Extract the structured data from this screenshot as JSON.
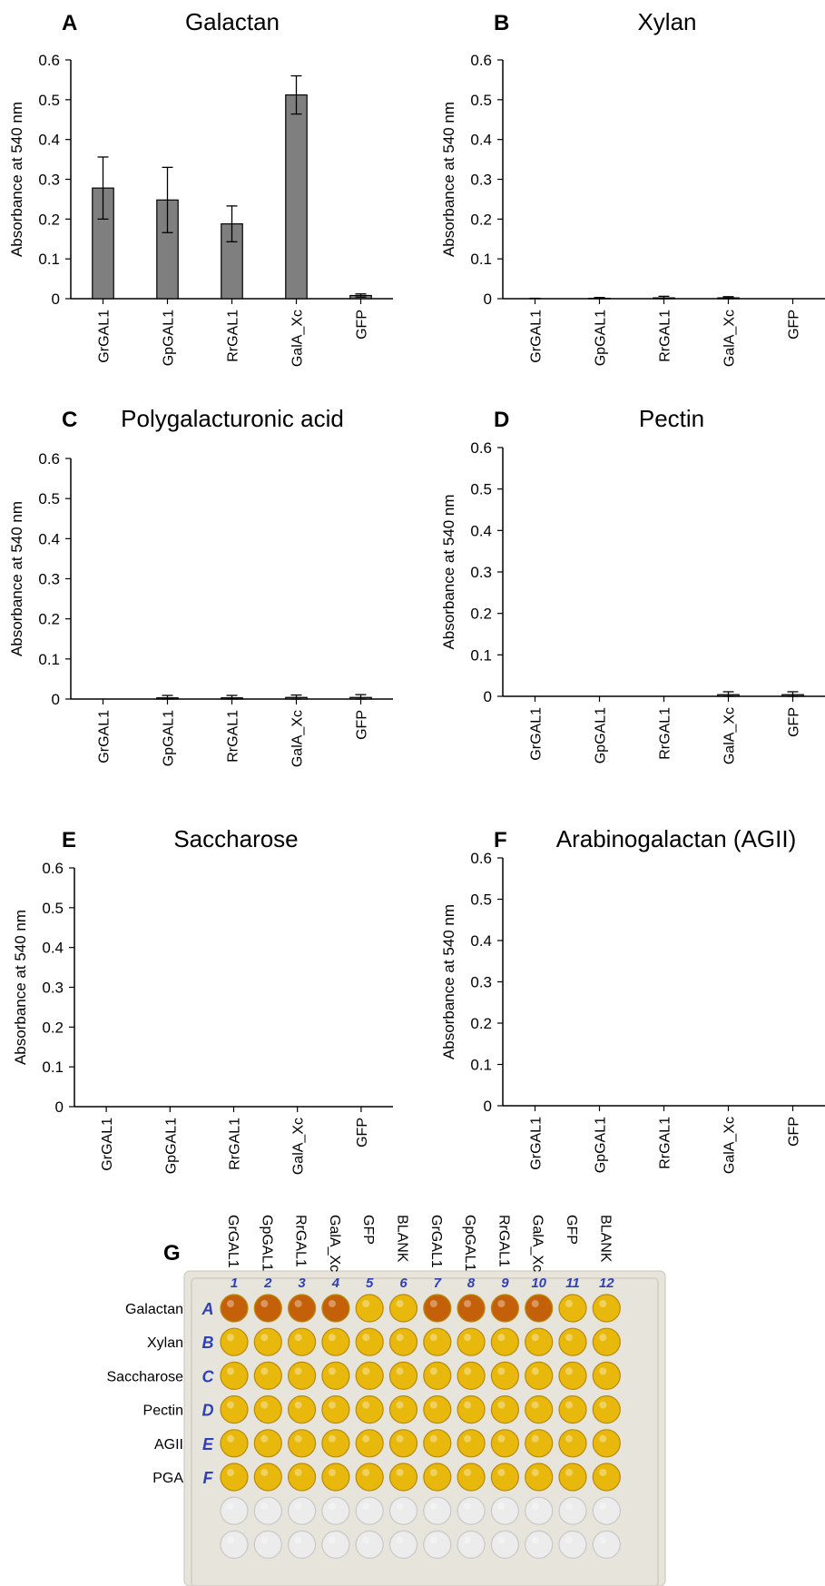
{
  "chart_data": [
    {
      "panel": "A",
      "title": "Galactan",
      "type": "bar",
      "ylabel": "Absorbance at 540 nm",
      "ylim": [
        0,
        0.6
      ],
      "yticks": [
        "0",
        "0.1",
        "0.2",
        "0.3",
        "0.4",
        "0.5",
        "0.6"
      ],
      "categories": [
        "GrGAL1",
        "GpGAL1",
        "RrGAL1",
        "GalA_Xc",
        "GFP"
      ],
      "values": [
        0.278,
        0.248,
        0.188,
        0.512,
        0.008
      ],
      "errors": [
        0.078,
        0.082,
        0.045,
        0.048,
        0.004
      ]
    },
    {
      "panel": "B",
      "title": "Xylan",
      "type": "bar",
      "ylabel": "Absorbance at 540 nm",
      "ylim": [
        0,
        0.6
      ],
      "yticks": [
        "0",
        "0.1",
        "0.2",
        "0.3",
        "0.4",
        "0.5",
        "0.6"
      ],
      "categories": [
        "GrGAL1",
        "GpGAL1",
        "RrGAL1",
        "GalA_Xc",
        "GFP"
      ],
      "values": [
        0.0,
        0.001,
        0.002,
        0.002,
        0.0
      ],
      "errors": [
        0.001,
        0.002,
        0.004,
        0.003,
        0.0
      ]
    },
    {
      "panel": "C",
      "title": "Polygalacturonic acid",
      "type": "bar",
      "ylabel": "Absorbance at 540 nm",
      "ylim": [
        0,
        0.6
      ],
      "yticks": [
        "0",
        "0.1",
        "0.2",
        "0.3",
        "0.4",
        "0.5",
        "0.6"
      ],
      "categories": [
        "GrGAL1",
        "GpGAL1",
        "RrGAL1",
        "GalA_Xc",
        "GFP"
      ],
      "values": [
        0.0,
        0.003,
        0.003,
        0.004,
        0.004
      ],
      "errors": [
        0.0,
        0.006,
        0.006,
        0.006,
        0.007
      ]
    },
    {
      "panel": "D",
      "title": "Pectin",
      "type": "bar",
      "ylabel": "Absorbance at 540 nm",
      "ylim": [
        0,
        0.6
      ],
      "yticks": [
        "0",
        "0.1",
        "0.2",
        "0.3",
        "0.4",
        "0.5",
        "0.6"
      ],
      "categories": [
        "GrGAL1",
        "GpGAL1",
        "RrGAL1",
        "GalA_Xc",
        "GFP"
      ],
      "values": [
        0.0,
        0.0,
        0.0,
        0.004,
        0.004
      ],
      "errors": [
        0.0,
        0.0,
        0.0,
        0.007,
        0.007
      ]
    },
    {
      "panel": "E",
      "title": "Saccharose",
      "type": "bar",
      "ylabel": "Absorbance at 540 nm",
      "ylim": [
        0,
        0.6
      ],
      "yticks": [
        "0",
        "0.1",
        "0.2",
        "0.3",
        "0.4",
        "0.5",
        "0.6"
      ],
      "categories": [
        "GrGAL1",
        "GpGAL1",
        "RrGAL1",
        "GalA_Xc",
        "GFP"
      ],
      "values": [
        0.0,
        0.0,
        0.0,
        0.0,
        0.0
      ],
      "errors": [
        0.0,
        0.0,
        0.0,
        0.0,
        0.0
      ]
    },
    {
      "panel": "F",
      "title": "Arabinogalactan (AGII)",
      "type": "bar",
      "ylabel": "Absorbance at 540 nm",
      "ylim": [
        0,
        0.6
      ],
      "yticks": [
        "0",
        "0.1",
        "0.2",
        "0.3",
        "0.4",
        "0.5",
        "0.6"
      ],
      "categories": [
        "GrGAL1",
        "GpGAL1",
        "RrGAL1",
        "GalA_Xc",
        "GFP"
      ],
      "values": [
        0.0,
        0.0,
        0.0,
        0.0,
        0.0
      ],
      "errors": [
        0.0,
        0.0,
        0.0,
        0.0,
        0.0
      ]
    }
  ],
  "plate": {
    "panel": "G",
    "column_headers": [
      "GrGAL1",
      "GpGAL1",
      "RrGAL1",
      "GalA_Xc",
      "GFP",
      "BLANK",
      "GrGAL1",
      "GpGAL1",
      "RrGAL1",
      "GalA_Xc",
      "GFP",
      "BLANK"
    ],
    "column_numbers": [
      "1",
      "2",
      "3",
      "4",
      "5",
      "6",
      "7",
      "8",
      "9",
      "10",
      "11",
      "12"
    ],
    "row_labels": [
      "Galactan",
      "Xylan",
      "Saccharose",
      "Pectin",
      "AGII",
      "PGA"
    ],
    "row_letters": [
      "A",
      "B",
      "C",
      "D",
      "E",
      "F"
    ]
  },
  "colors": {
    "bar_fill": "#7f7f7f",
    "axis": "#000000",
    "well_yellow": "#e8b90c",
    "well_orange": "#c5600a",
    "well_empty": "#ececec",
    "plate_bg": "#e7e4dc",
    "marker_ink": "#2f3fb5"
  }
}
